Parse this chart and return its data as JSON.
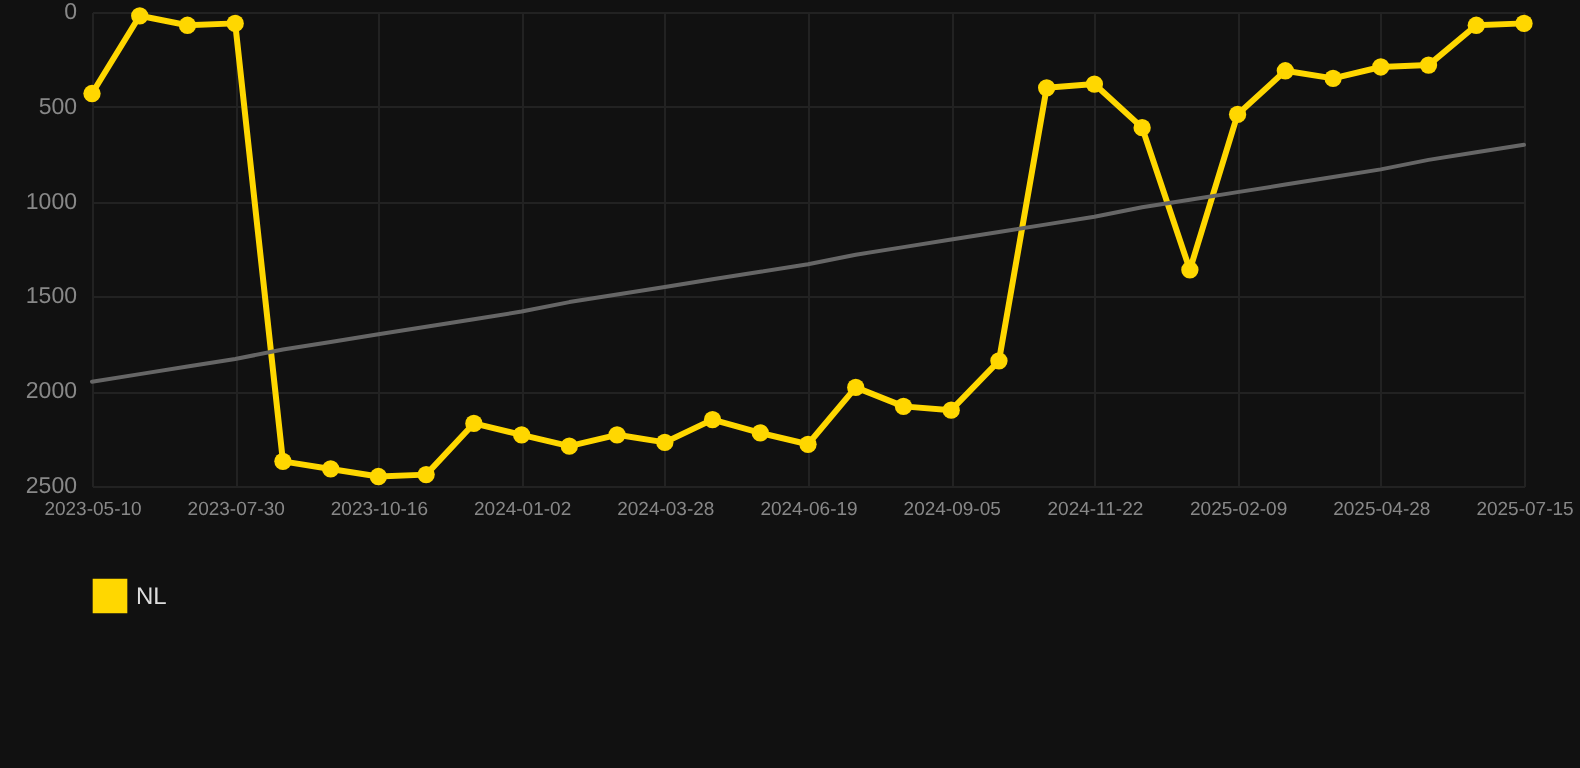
{
  "chart_data": {
    "type": "line",
    "categories": [
      "2023-05-10",
      null,
      null,
      "2023-07-30",
      null,
      null,
      "2023-10-16",
      null,
      null,
      "2024-01-02",
      null,
      null,
      "2024-03-28",
      null,
      null,
      "2024-06-19",
      null,
      null,
      "2024-09-05",
      null,
      null,
      "2024-11-22",
      null,
      null,
      "2025-02-09",
      null,
      null,
      "2025-04-28",
      null,
      null,
      "2025-07-15"
    ],
    "series": [
      {
        "name": "NL",
        "color": "#ffd700",
        "values": [
          430,
          20,
          70,
          60,
          2370,
          2410,
          2450,
          2440,
          2170,
          2230,
          2290,
          2230,
          2270,
          2150,
          2220,
          2280,
          1980,
          2080,
          2100,
          1840,
          400,
          380,
          610,
          1360,
          540,
          310,
          350,
          290,
          280,
          70,
          60
        ]
      },
      {
        "type": "line",
        "color": "#666666",
        "marker": "none",
        "values": [
          1950,
          1910,
          1870,
          1830,
          1780,
          1740,
          1700,
          1660,
          1620,
          1580,
          1530,
          1490,
          1450,
          1410,
          1370,
          1330,
          1280,
          1240,
          1200,
          1160,
          1120,
          1080,
          1030,
          990,
          950,
          910,
          870,
          830,
          780,
          740,
          700
        ]
      }
    ],
    "ylim": [
      2500,
      0
    ],
    "yticks": [
      0,
      500,
      1000,
      1500,
      2000,
      2500
    ],
    "grid": true,
    "legend": "bottom",
    "marker": "circle",
    "line_style": "solid"
  }
}
